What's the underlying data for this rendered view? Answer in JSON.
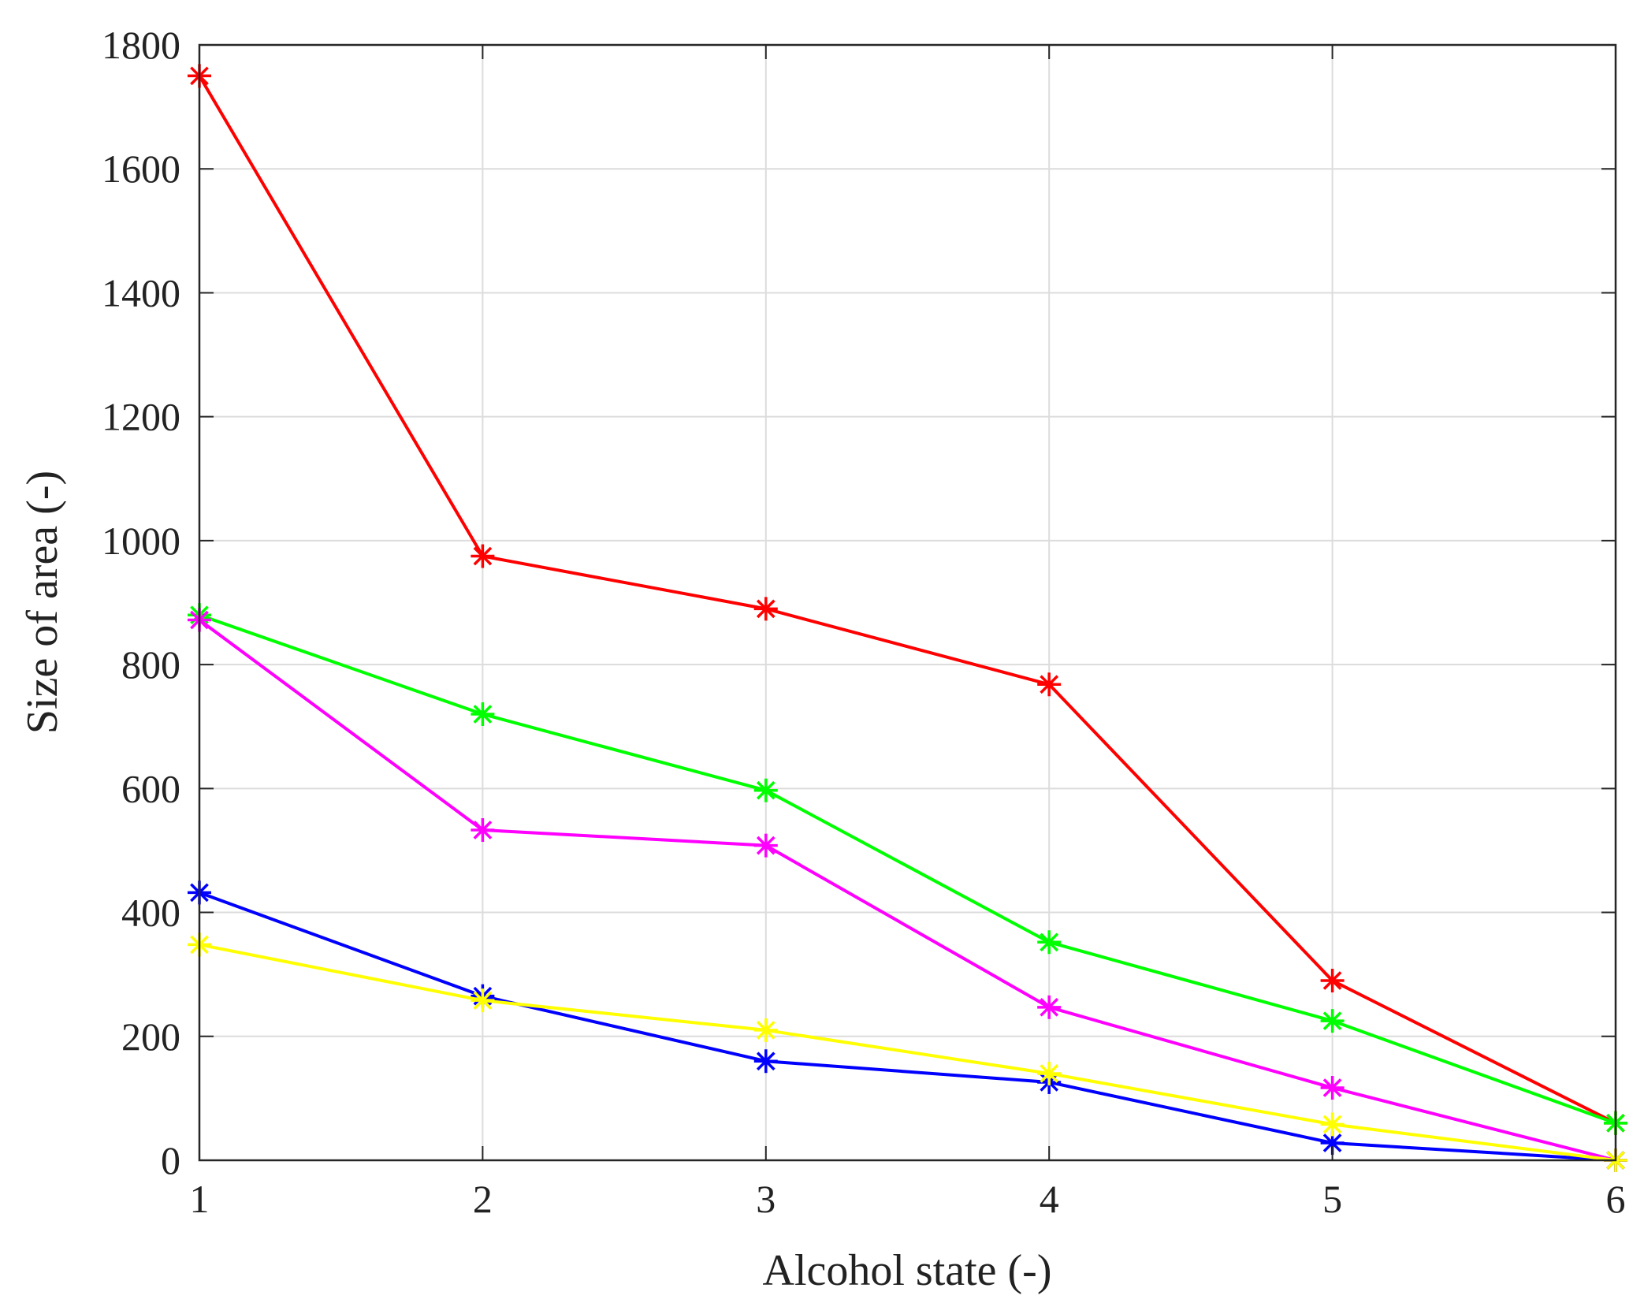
{
  "chart_data": {
    "type": "line",
    "title": "",
    "xlabel": "Alcohol state (-)",
    "ylabel": "Size of area (-)",
    "xlim": [
      1,
      6
    ],
    "ylim": [
      0,
      1800
    ],
    "x": [
      1,
      2,
      3,
      4,
      5,
      6
    ],
    "xticks": [
      1,
      2,
      3,
      4,
      5,
      6
    ],
    "xtick_labels": [
      "1",
      "2",
      "3",
      "4",
      "5",
      "6"
    ],
    "yticks": [
      0,
      200,
      400,
      600,
      800,
      1000,
      1200,
      1400,
      1600,
      1800
    ],
    "ytick_labels": [
      "0",
      "200",
      "400",
      "600",
      "800",
      "1000",
      "1200",
      "1400",
      "1600",
      "1800"
    ],
    "grid": true,
    "marker": "*",
    "series": [
      {
        "name": "red",
        "color": "#ff0000",
        "values": [
          1750,
          975,
          890,
          768,
          290,
          60
        ]
      },
      {
        "name": "green",
        "color": "#00ff00",
        "values": [
          880,
          720,
          597,
          352,
          225,
          60
        ]
      },
      {
        "name": "magenta",
        "color": "#ff00ff",
        "values": [
          872,
          533,
          508,
          247,
          117,
          0
        ]
      },
      {
        "name": "blue",
        "color": "#0000ff",
        "values": [
          432,
          265,
          160,
          126,
          28,
          0
        ]
      },
      {
        "name": "yellow",
        "color": "#ffff00",
        "values": [
          348,
          258,
          210,
          140,
          58,
          0
        ]
      }
    ]
  }
}
